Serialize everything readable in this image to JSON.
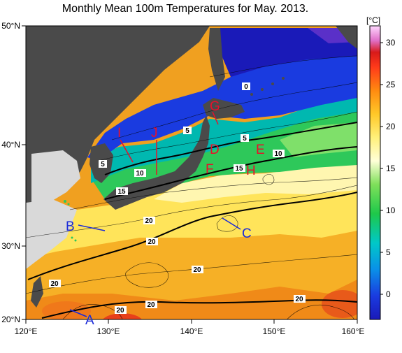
{
  "title": "Monthly Mean 100m Temperatures for May. 2013.",
  "colorbar": {
    "unit": "[°C]",
    "ticks": [
      "30",
      "25",
      "20",
      "15",
      "10",
      "5",
      "0"
    ],
    "min": -3,
    "max": 32
  },
  "axes": {
    "x_ticks": [
      "120°E",
      "130°E",
      "140°E",
      "150°E",
      "160°E"
    ],
    "y_ticks": [
      "50°N",
      "40°N",
      "30°N",
      "20°N"
    ]
  },
  "isotherm_labels": [
    "0",
    "5",
    "5",
    "5",
    "10",
    "10",
    "15",
    "15",
    "20",
    "20",
    "20",
    "20",
    "20",
    "20"
  ],
  "markers": {
    "red": [
      "G",
      "I",
      "J",
      "D",
      "E",
      "F",
      "H"
    ],
    "blue": [
      "A",
      "B",
      "C"
    ]
  },
  "colors": {
    "land": "#4a4a4a",
    "shallow": "#d9d9d9",
    "marker_red": "#e8102a",
    "marker_blue": "#1a2ad8"
  }
}
